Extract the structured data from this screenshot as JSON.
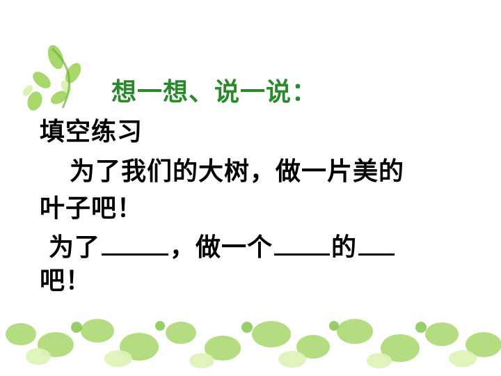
{
  "slide": {
    "title": "想一想、说一说：",
    "heading": "填空练习",
    "sentence_part1": "为了我们的大树，做一片美的",
    "sentence_part2": "叶子吧！",
    "fill_prefix": "为了",
    "fill_mid1": "，做一个",
    "fill_mid2": "的",
    "fill_end": "吧！"
  },
  "colors": {
    "title": "#2a8a2a",
    "leaf": "#7cc242",
    "leaf_light": "#c9e99a"
  }
}
